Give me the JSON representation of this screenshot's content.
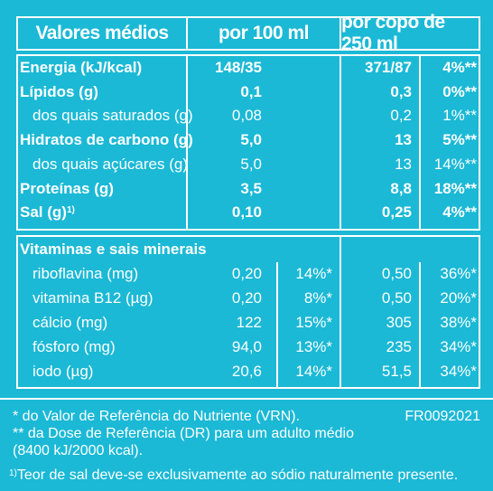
{
  "header": {
    "col_label": "Valores médios",
    "col_100": "por 100 ml",
    "col_250": "por copo de 250 ml"
  },
  "nutrients": [
    {
      "label": "Energia (kJ/kcal)",
      "bold": true,
      "v100": "148/35",
      "v250": "371/87",
      "pct": "4%**"
    },
    {
      "label": "Lípidos (g)",
      "bold": true,
      "v100": "0,1",
      "v250": "0,3",
      "pct": "0%**"
    },
    {
      "label": "dos quais saturados (g)",
      "bold": false,
      "v100": "0,08",
      "v250": "0,2",
      "pct": "1%**"
    },
    {
      "label": "Hidratos de carbono (g)",
      "bold": true,
      "v100": "5,0",
      "v250": "13",
      "pct": "5%**"
    },
    {
      "label": "dos quais açúcares (g)",
      "bold": false,
      "v100": "5,0",
      "v250": "13",
      "pct": "14%**"
    },
    {
      "label": "Proteínas (g)",
      "bold": true,
      "v100": "3,5",
      "v250": "8,8",
      "pct": "18%**"
    },
    {
      "label": "Sal (g)",
      "sup": "1)",
      "bold": true,
      "v100": "0,10",
      "v250": "0,25",
      "pct": "4%**"
    }
  ],
  "vitamins_title": "Vitaminas e sais minerais",
  "vitamins": [
    {
      "label": "riboflavina (mg)",
      "v100": "0,20",
      "p100": "14%*",
      "v250": "0,50",
      "p250": "36%*"
    },
    {
      "label": "vitamina B12 (µg)",
      "v100": "0,20",
      "p100": "8%*",
      "v250": "0,50",
      "p250": "20%*"
    },
    {
      "label": "cálcio (mg)",
      "v100": "122",
      "p100": "15%*",
      "v250": "305",
      "p250": "38%*"
    },
    {
      "label": "fósforo (mg)",
      "v100": "94,0",
      "p100": "13%*",
      "v250": "235",
      "p250": "34%*"
    },
    {
      "label": "iodo (µg)",
      "v100": "20,6",
      "p100": "14%*",
      "v250": "51,5",
      "p250": "34%*"
    }
  ],
  "footnotes": {
    "vrn": "* do Valor de Referência do Nutriente (VRN).",
    "code": "FR0092021",
    "dr_line1": "** da Dose de Referência (DR) para um adulto médio",
    "dr_line2": "(8400 kJ/2000 kcal).",
    "salt_sup": "1)",
    "salt": "Teor de sal deve-se exclusivamente ao sódio naturalmente presente."
  },
  "colors": {
    "background": "#1bb9d6",
    "text": "#ffffff"
  }
}
